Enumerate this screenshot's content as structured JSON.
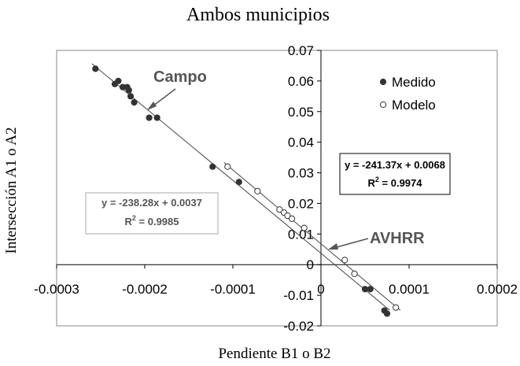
{
  "chart_data": {
    "type": "scatter",
    "title": "Ambos municipios",
    "xlabel": "Pendiente B1 o B2",
    "ylabel": "Intersección A1 o A2",
    "xlim": [
      -0.0003,
      0.0002
    ],
    "ylim": [
      -0.02,
      0.07
    ],
    "x_ticks": [
      "-0.0003",
      "-0.0002",
      "-0.0001",
      "0",
      "0.0001",
      "0.0002"
    ],
    "y_ticks": [
      "-0.02",
      "-0.01",
      "0",
      "0.01",
      "0.02",
      "0.03",
      "0.04",
      "0.05",
      "0.06",
      "0.07"
    ],
    "grid": false,
    "legend_position": "top-right",
    "series": [
      {
        "name": "Medido",
        "marker": "filled-circle",
        "color": "#333333",
        "x": [
          -0.000256,
          -0.000234,
          -0.00023,
          -0.000225,
          -0.00022,
          -0.000218,
          -0.000216,
          -0.000212,
          -0.000195,
          -0.000186,
          -0.000123,
          -9.3e-05,
          5e-05,
          5.6e-05,
          7.2e-05,
          7.5e-05
        ],
        "y": [
          0.064,
          0.059,
          0.06,
          0.058,
          0.058,
          0.057,
          0.055,
          0.053,
          0.048,
          0.048,
          0.032,
          0.027,
          -0.008,
          -0.008,
          -0.015,
          -0.016
        ]
      },
      {
        "name": "Modelo",
        "marker": "open-circle",
        "color": "#333333",
        "x": [
          -0.000106,
          -7.2e-05,
          -4.7e-05,
          -4.2e-05,
          -3.8e-05,
          -3.3e-05,
          -1.9e-05,
          2.7e-05,
          3.8e-05,
          8.5e-05
        ],
        "y": [
          0.032,
          0.024,
          0.018,
          0.017,
          0.016,
          0.015,
          0.012,
          0.0015,
          -0.003,
          -0.014
        ]
      }
    ],
    "trendlines": [
      {
        "series": "Medido",
        "label_name": "Campo",
        "equation": "y = -238.28x + 0.0037",
        "r2_prefix": "R",
        "r2_sup": "2",
        "r2_value": " = 0.9985",
        "slope": -238.28,
        "intercept": 0.0037,
        "x_range": [
          -0.00026,
          7.8e-05
        ]
      },
      {
        "series": "Modelo",
        "label_name": "AVHRR",
        "equation": "y = -241.37x + 0.0068",
        "r2_prefix": "R",
        "r2_sup": "2",
        "r2_value": " = 0.9974",
        "slope": -241.37,
        "intercept": 0.0068,
        "x_range": [
          -0.00011,
          9e-05
        ]
      }
    ],
    "colors": {
      "marker": "#333333",
      "line": "#444444",
      "label": "#555555",
      "axis": "#000000",
      "frame": "#888888"
    }
  }
}
